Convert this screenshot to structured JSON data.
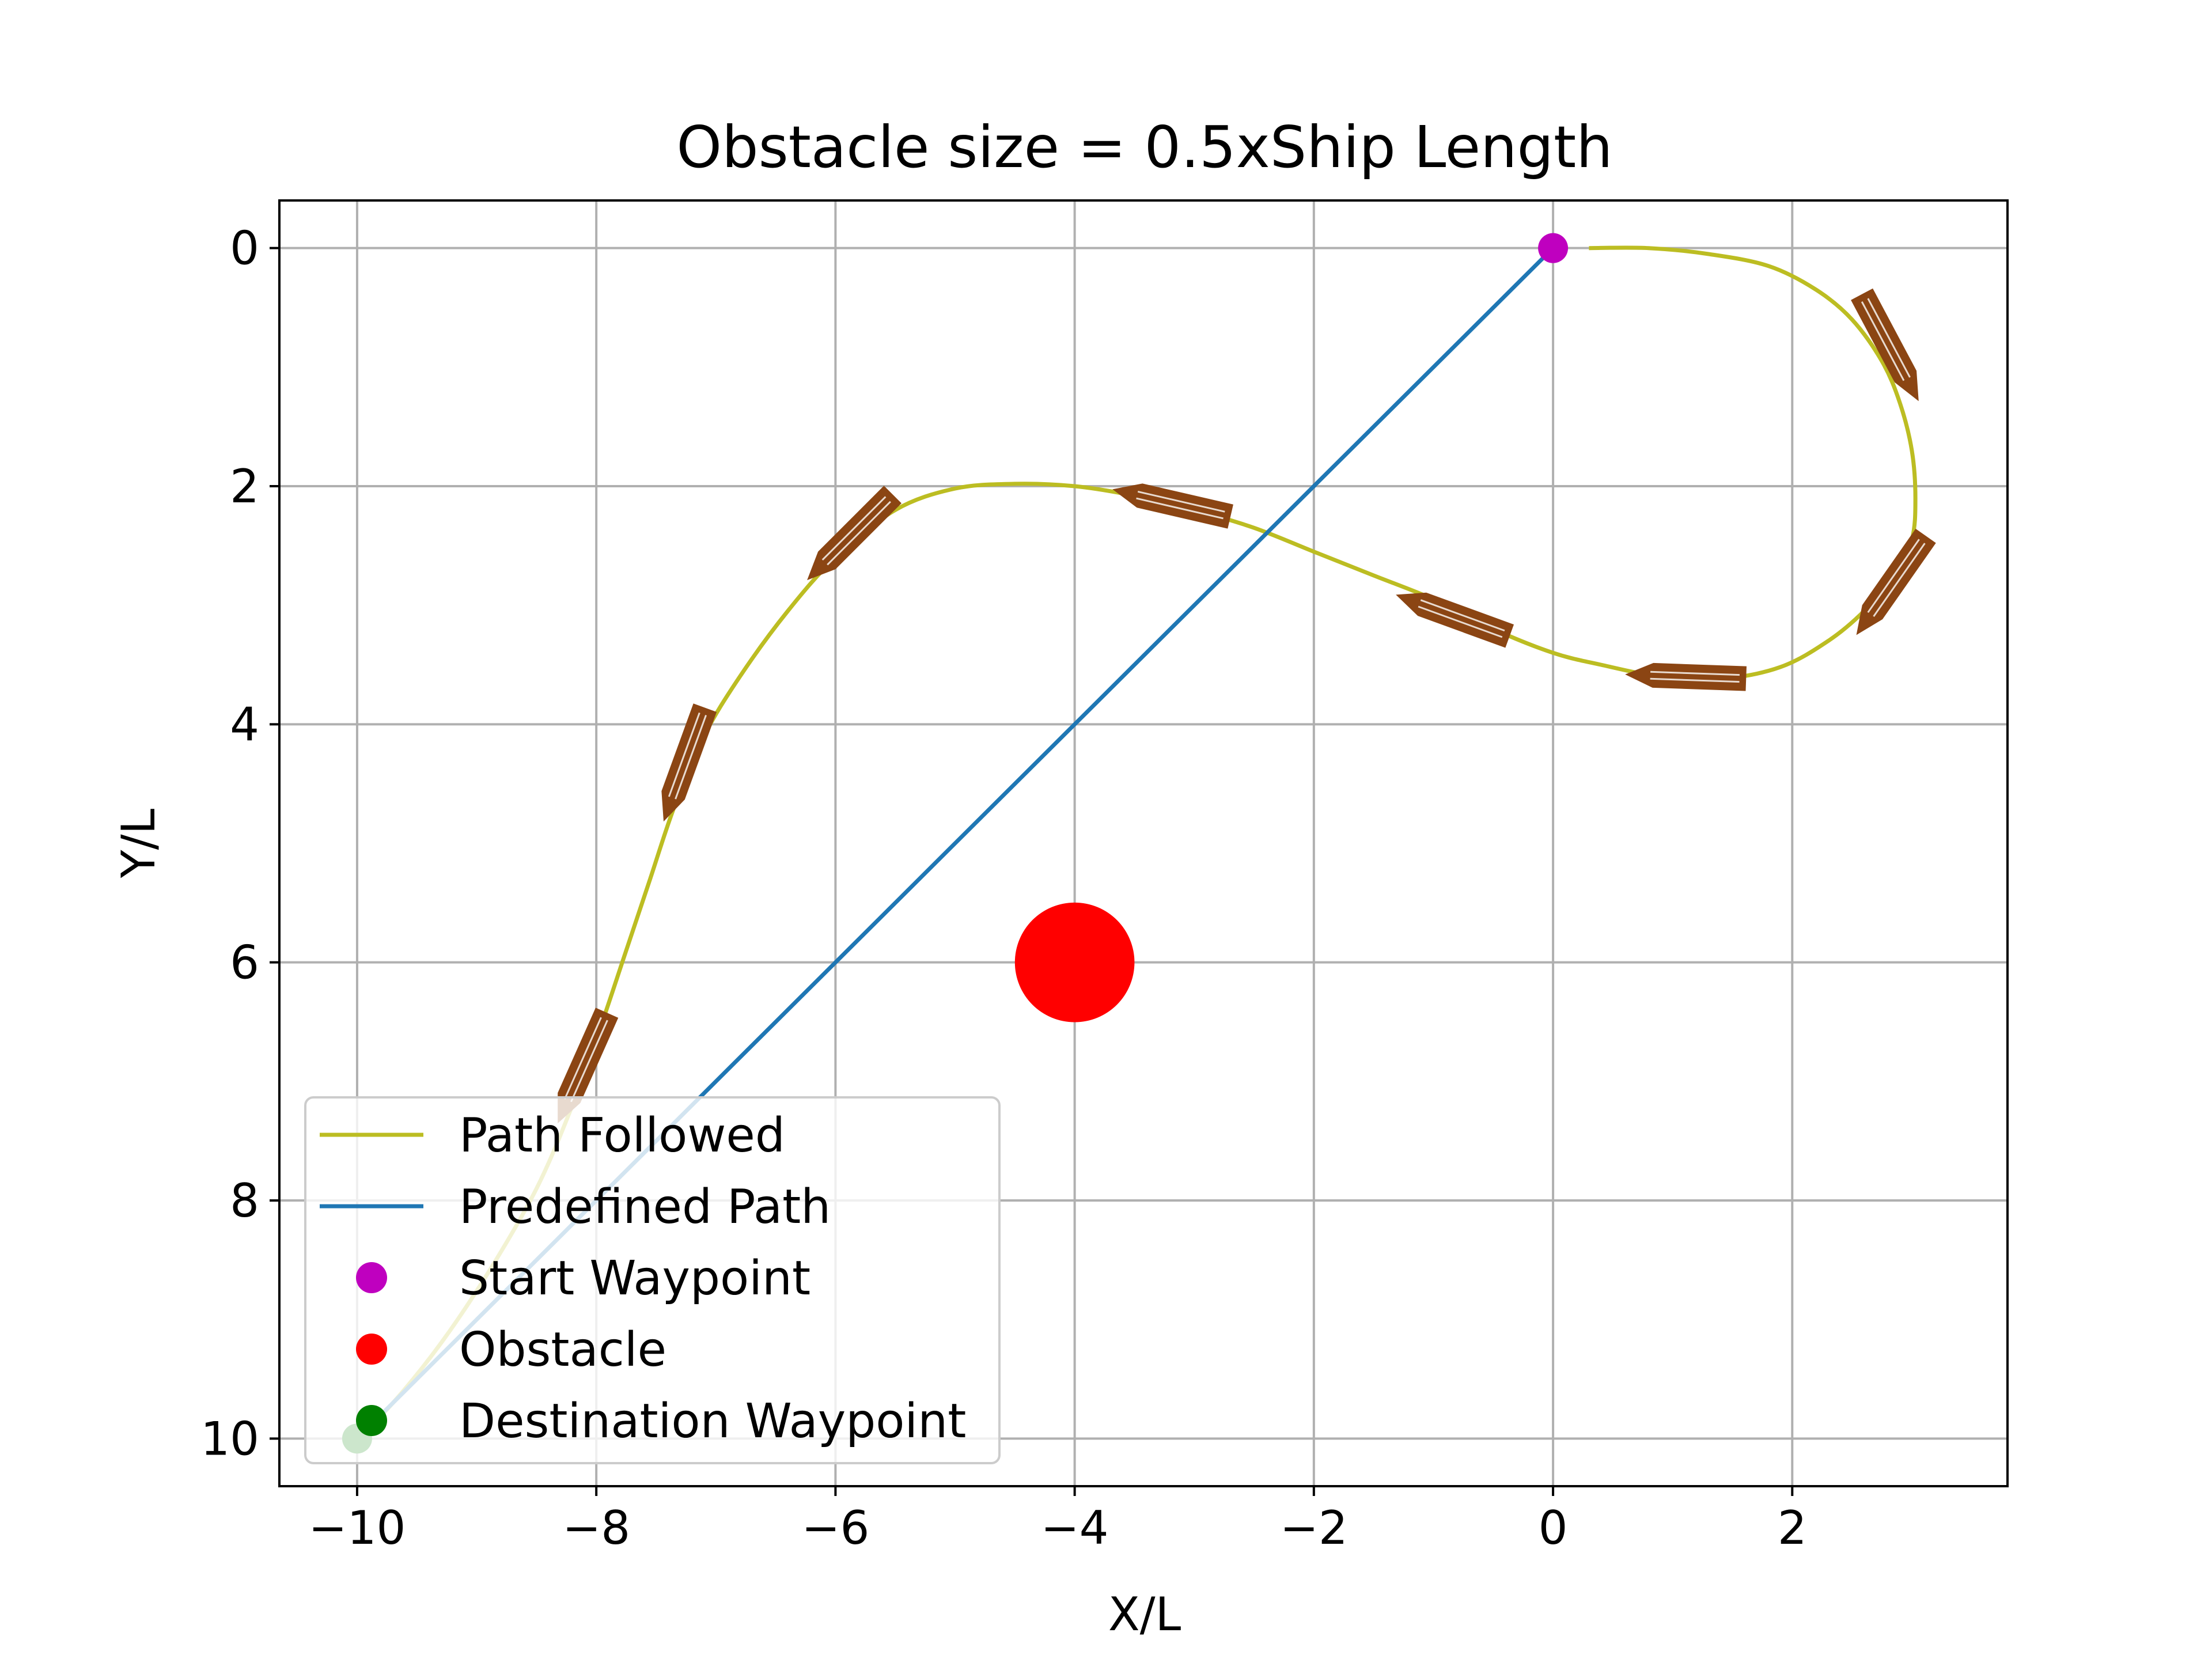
{
  "chart_data": {
    "type": "line",
    "title": "Obstacle size = 0.5xShip Length",
    "xlabel": "X/L",
    "ylabel": "Y/L",
    "xlim": [
      -10.65,
      3.8
    ],
    "ylim": [
      10.4,
      -0.4
    ],
    "y_inverted": true,
    "x_ticks": [
      -10,
      -8,
      -6,
      -4,
      -2,
      0,
      2
    ],
    "x_tick_labels": [
      "−10",
      "−8",
      "−6",
      "−4",
      "−2",
      "0",
      "2"
    ],
    "y_ticks": [
      0,
      2,
      4,
      6,
      8,
      10
    ],
    "y_tick_labels": [
      "0",
      "2",
      "4",
      "6",
      "8",
      "10"
    ],
    "grid": true,
    "legend_placement": "lower-left",
    "series": [
      {
        "name": "Path Followed",
        "kind": "line",
        "color": "#bcbd22",
        "x": [
          0.3,
          0.8,
          1.3,
          1.8,
          2.2,
          2.5,
          2.75,
          2.9,
          3.0,
          3.03,
          3.0,
          2.85,
          2.6,
          2.3,
          1.9,
          1.4,
          0.9,
          0.4,
          0.0,
          -0.5,
          -1.0,
          -1.5,
          -2.0,
          -2.5,
          -3.0,
          -3.5,
          -4.0,
          -4.5,
          -5.0,
          -5.5,
          -6.0,
          -6.4,
          -6.8,
          -7.1,
          -7.35,
          -7.55,
          -7.75,
          -7.95,
          -8.2,
          -8.5,
          -8.9,
          -9.3,
          -9.7,
          -10.0
        ],
        "y": [
          0.0,
          0.0,
          0.05,
          0.15,
          0.35,
          0.6,
          0.95,
          1.3,
          1.7,
          2.1,
          2.45,
          2.75,
          3.05,
          3.3,
          3.52,
          3.62,
          3.6,
          3.5,
          3.4,
          3.2,
          2.95,
          2.75,
          2.55,
          2.35,
          2.2,
          2.08,
          2.0,
          1.98,
          2.02,
          2.2,
          2.6,
          3.05,
          3.6,
          4.1,
          4.7,
          5.3,
          5.9,
          6.5,
          7.2,
          7.9,
          8.6,
          9.2,
          9.7,
          10.0
        ]
      },
      {
        "name": "Predefined Path",
        "kind": "line",
        "color": "#1f77b4",
        "x": [
          0,
          -10
        ],
        "y": [
          0,
          10
        ]
      },
      {
        "name": "Start Waypoint",
        "kind": "point",
        "color": "#bf00bf",
        "x": [
          0
        ],
        "y": [
          0
        ]
      },
      {
        "name": "Obstacle",
        "kind": "point",
        "color": "#ff0000",
        "x": [
          -4
        ],
        "y": [
          6
        ],
        "radius": 0.5
      },
      {
        "name": "Destination Waypoint",
        "kind": "point",
        "color": "#008000",
        "x": [
          -10
        ],
        "y": [
          10
        ]
      }
    ],
    "ship_markers": {
      "color": "#8b4513",
      "positions": [
        {
          "x": 2.8,
          "y": 0.8,
          "heading": 62
        },
        {
          "x": 2.85,
          "y": 2.8,
          "heading": 125
        },
        {
          "x": 1.15,
          "y": 3.6,
          "heading": 182
        },
        {
          "x": -0.8,
          "y": 3.1,
          "heading": 200
        },
        {
          "x": -3.15,
          "y": 2.15,
          "heading": 193
        },
        {
          "x": -5.85,
          "y": 2.4,
          "heading": 135
        },
        {
          "x": -7.25,
          "y": 4.3,
          "heading": 110
        },
        {
          "x": -8.1,
          "y": 6.85,
          "heading": 114
        }
      ]
    }
  }
}
